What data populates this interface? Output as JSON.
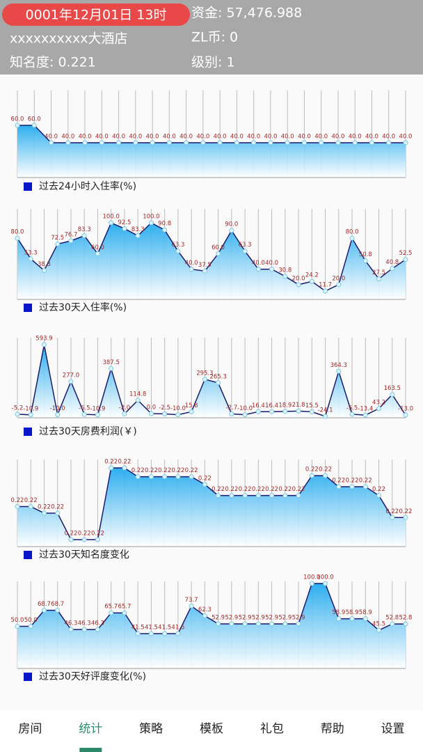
{
  "header": {
    "date": "0001年12月01日 13时",
    "funds": "资金: 57,476.988",
    "hotel": "xxxxxxxxxx大酒店",
    "zl": "ZL币: 0",
    "fame": "知名度: 0.221",
    "level": "级别: 1"
  },
  "chart_data": [
    {
      "type": "area",
      "title": "过去24小时入住率(%)",
      "color": "#1a1a6e",
      "legend_color": "#0a14c8",
      "values": [
        60,
        60,
        40,
        40,
        40,
        40,
        40,
        40,
        40,
        40,
        40,
        40,
        40,
        40,
        40,
        40,
        40,
        40,
        40,
        40,
        40,
        40,
        40,
        40
      ],
      "value_labels": [
        "60.0",
        "60.0",
        "40.0",
        "40.0",
        "40.0",
        "40.0",
        "40.0",
        "40.0",
        "40.0",
        "40.0",
        "40.0",
        "40.0",
        "40.0",
        "40.0",
        "40.0",
        "40.0",
        "40.0",
        "40.0",
        "40.0",
        "40.0",
        "40.0",
        "40.0",
        "40.0",
        "40.0"
      ]
    },
    {
      "type": "area",
      "title": "过去30天入住率(%)",
      "color": "#1a1a6e",
      "legend_color": "#0a14c8",
      "values": [
        80,
        53.3,
        38.3,
        72.5,
        76.7,
        83.3,
        60,
        100,
        92.5,
        83.3,
        100,
        90.8,
        63.3,
        40,
        37.5,
        60,
        90,
        63.3,
        40,
        40,
        30.8,
        20,
        24.2,
        11.7,
        20,
        80,
        50.8,
        27.5,
        40.8,
        52.5
      ],
      "value_labels": [
        "80.0",
        "53.3",
        "38.3",
        "72.5",
        "76.7",
        "83.3",
        "60.0",
        "100.0",
        "92.5",
        "83.3",
        "100.0",
        "90.8",
        "63.3",
        "40.0",
        "37.5",
        "60.0",
        "90.0",
        "63.3",
        "40.0",
        "40.0",
        "30.8",
        "20.0",
        "24.2",
        "11.7",
        "20.0",
        "80.0",
        "50.8",
        "27.5",
        "40.8",
        "52.5"
      ]
    },
    {
      "type": "area",
      "title": "过去30天房费利润(￥)",
      "color": "#1a1a6e",
      "legend_color": "#0a14c8",
      "values": [
        -5.2,
        -10.9,
        593.9,
        -10,
        277,
        -6.5,
        -10.9,
        387.5,
        -2,
        114.8,
        0,
        -2.5,
        -10,
        15.8,
        295.3,
        265.3,
        -2.7,
        -10,
        16.4,
        16.4,
        18.9,
        21.8,
        15.5,
        -24.1,
        364.3,
        -5.5,
        -13.4,
        43.2,
        163.5,
        -13
      ],
      "value_labels": [
        "-5.2",
        "-10.9",
        "593.9",
        "-10.0",
        "277.0",
        "-6.5",
        "-10.9",
        "387.5",
        "-2.0",
        "114.8",
        "0.0",
        "-2.5",
        "-10.0",
        "15.8",
        "295.3",
        "265.3",
        "-2.7",
        "-10.0",
        "16.4",
        "16.4",
        "18.9",
        "21.8",
        "15.5",
        "-24.1",
        "364.3",
        "-5.5",
        "-13.4",
        "43.2",
        "163.5",
        "-13.0"
      ]
    },
    {
      "type": "area",
      "title": "过去30天知名度变化",
      "color": "#1a1a6e",
      "legend_color": "#0a14c8",
      "values": [
        0.2205,
        0.2205,
        0.2199,
        0.2199,
        0.2175,
        0.2175,
        0.2175,
        0.224,
        0.224,
        0.2232,
        0.2232,
        0.2232,
        0.2232,
        0.2232,
        0.2225,
        0.2215,
        0.2215,
        0.2215,
        0.2215,
        0.2215,
        0.2215,
        0.2215,
        0.2233,
        0.2233,
        0.2223,
        0.2223,
        0.2223,
        0.2215,
        0.2195,
        0.2195
      ],
      "value_labels": [
        "0.22",
        "0.22",
        "0.22",
        "0.22",
        "0.22",
        "0.22",
        "0.22",
        "0.22",
        "0.22",
        "0.22",
        "0.22",
        "0.22",
        "0.22",
        "0.22",
        "0.22",
        "0.22",
        "0.22",
        "0.22",
        "0.22",
        "0.22",
        "0.22",
        "0.22",
        "0.22",
        "0.22",
        "0.22",
        "0.22",
        "0.22",
        "0.22",
        "0.22",
        "0.22"
      ]
    },
    {
      "type": "area",
      "title": "过去30天好评度变化(%)",
      "color": "#1a1a6e",
      "legend_color": "#0a14c8",
      "values": [
        50,
        50,
        68.7,
        68.7,
        46.3,
        46.3,
        46.3,
        65.7,
        65.7,
        41.5,
        41.5,
        41.5,
        41.5,
        73.7,
        62.3,
        52.9,
        52.9,
        52.9,
        52.9,
        52.9,
        52.9,
        52.9,
        100,
        100,
        58.9,
        58.9,
        58.9,
        45.5,
        52.8,
        52.8
      ],
      "value_labels": [
        "50.0",
        "50.0",
        "68.7",
        "68.7",
        "46.3",
        "46.3",
        "46.3",
        "65.7",
        "65.7",
        "41.5",
        "41.5",
        "41.5",
        "41.5",
        "73.7",
        "62.3",
        "52.9",
        "52.9",
        "52.9",
        "52.9",
        "52.9",
        "52.9",
        "52.9",
        "100.0",
        "100.0",
        "58.9",
        "58.9",
        "58.9",
        "45.5",
        "52.8",
        "52.8"
      ]
    }
  ],
  "tabs": {
    "items": [
      "房间",
      "统计",
      "策略",
      "模板",
      "礼包",
      "帮助",
      "设置"
    ],
    "selected": 1
  }
}
